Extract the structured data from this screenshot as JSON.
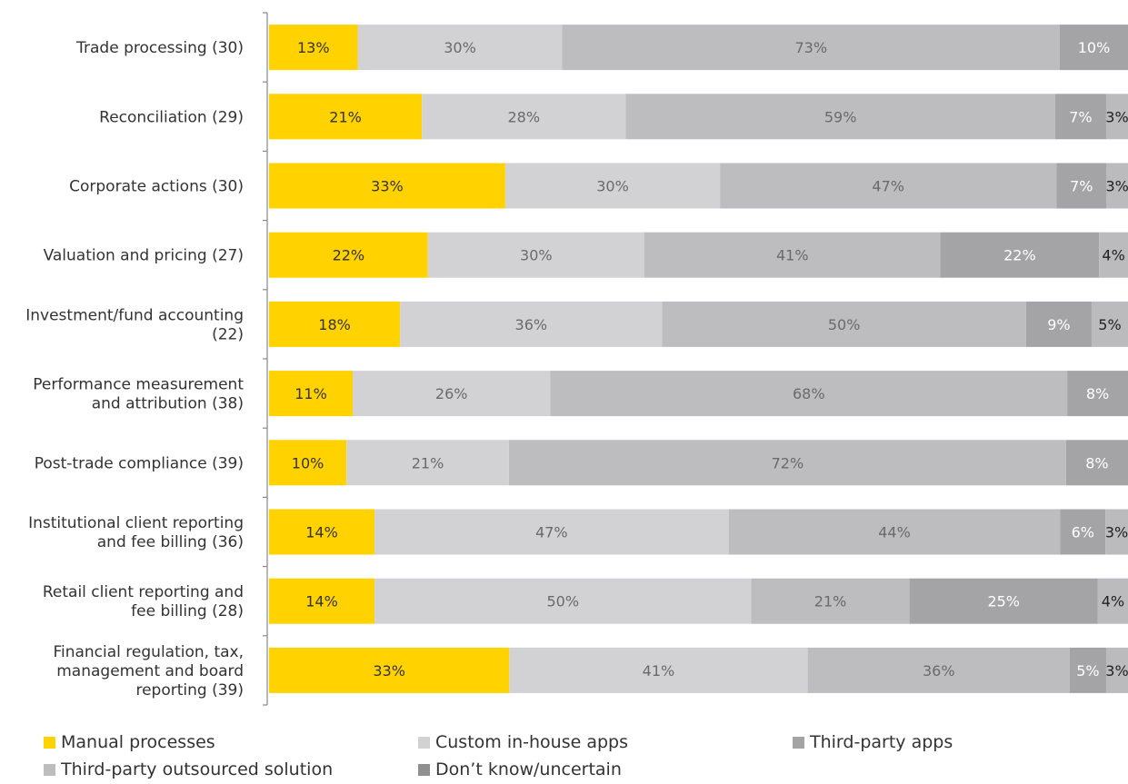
{
  "chart_data": {
    "type": "bar",
    "orientation": "horizontal",
    "stacked": true,
    "title": "",
    "xlabel": "",
    "ylabel": "",
    "categories": [
      [
        "Trade processing (30)"
      ],
      [
        "Reconciliation (29)"
      ],
      [
        "Corporate actions (30)"
      ],
      [
        "Valuation and pricing (27)"
      ],
      [
        "Investment/fund accounting",
        "(22)"
      ],
      [
        "Performance measurement",
        "and attribution (38)"
      ],
      [
        "Post-trade compliance (39)"
      ],
      [
        "Institutional client reporting",
        "and fee billing (36)"
      ],
      [
        "Retail client reporting and",
        "fee billing (28)"
      ],
      [
        "Financial regulation, tax,",
        "management and board",
        "reporting (39)"
      ]
    ],
    "series": [
      {
        "name": "Manual processes",
        "color": "#FFD200",
        "label_color": "#333333",
        "values": [
          13,
          21,
          33,
          22,
          18,
          11,
          10,
          14,
          14,
          33
        ]
      },
      {
        "name": "Custom in-house apps",
        "color": "#D2D2D4",
        "label_color": "#6a6a6a",
        "values": [
          30,
          28,
          30,
          30,
          36,
          26,
          21,
          47,
          50,
          41
        ]
      },
      {
        "name": "Third-party apps",
        "color": "#BDBDBF",
        "label_color": "#6a6a6a",
        "values": [
          73,
          59,
          47,
          41,
          50,
          68,
          72,
          44,
          21,
          36
        ]
      },
      {
        "name": "Third-party outsourced solution",
        "color": "#A4A4A6",
        "label_color": "#ffffff",
        "values": [
          10,
          7,
          7,
          22,
          9,
          8,
          8,
          6,
          25,
          5
        ]
      },
      {
        "name": "Don’t know/uncertain",
        "color": "#BBBBBD",
        "label_color": "#222222",
        "values": [
          null,
          3,
          3,
          4,
          5,
          null,
          null,
          3,
          4,
          3
        ]
      }
    ],
    "legend_position": "bottom",
    "grid": false
  },
  "legend": {
    "items": [
      {
        "name": "Manual processes",
        "color": "#FFD200"
      },
      {
        "name": "Custom in-house apps",
        "color": "#D2D2D4"
      },
      {
        "name": "Third-party apps",
        "color": "#A4A4A6"
      },
      {
        "name": "Third-party outsourced solution",
        "color": "#BDBDBF"
      },
      {
        "name": "Don’t know/uncertain",
        "color": "#909092"
      }
    ]
  }
}
